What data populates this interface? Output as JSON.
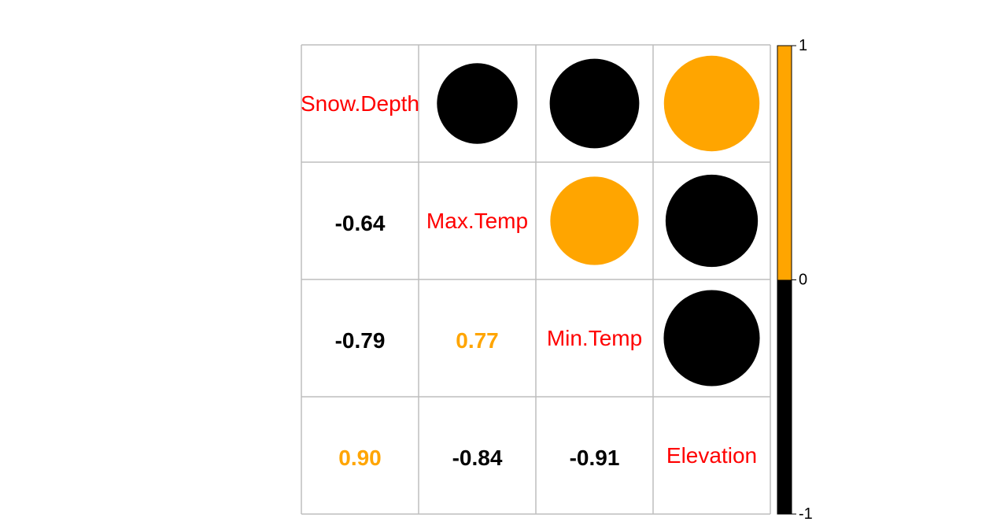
{
  "chart_data": {
    "type": "heatmap",
    "variables": [
      "Snow.Depth",
      "Max.Temp",
      "Min.Temp",
      "Elevation"
    ],
    "matrix": [
      [
        1.0,
        -0.64,
        -0.79,
        0.9
      ],
      [
        -0.64,
        1.0,
        0.77,
        -0.84
      ],
      [
        -0.79,
        0.77,
        1.0,
        -0.91
      ],
      [
        0.9,
        -0.84,
        -0.91,
        1.0
      ]
    ],
    "lower_labels": [
      {
        "row": 1,
        "col": 0,
        "text": "-0.64"
      },
      {
        "row": 2,
        "col": 0,
        "text": "-0.79"
      },
      {
        "row": 2,
        "col": 1,
        "text": "0.77"
      },
      {
        "row": 3,
        "col": 0,
        "text": "0.90"
      },
      {
        "row": 3,
        "col": 1,
        "text": "-0.84"
      },
      {
        "row": 3,
        "col": 2,
        "text": "-0.91"
      }
    ],
    "upper_display": "circle",
    "lower_display": "number",
    "colorbar": {
      "ticks": [
        "1",
        "0",
        "-1"
      ],
      "positive_color": "#FFA500",
      "negative_color": "#000000"
    },
    "colors": {
      "positive": "#FFA500",
      "negative": "#000000",
      "variable_label": "#FF0000",
      "grid": "#BEBEBE"
    }
  }
}
